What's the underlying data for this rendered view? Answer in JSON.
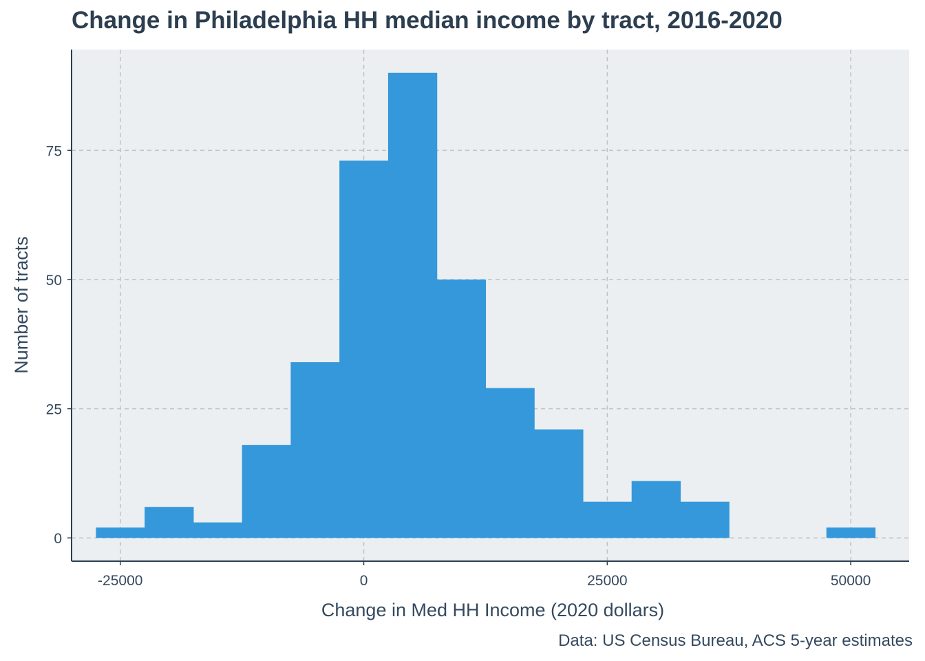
{
  "chart_data": {
    "type": "bar",
    "title": "Change in Philadelphia HH median income by tract, 2016-2020",
    "xlabel": "Change in Med HH Income (2020 dollars)",
    "ylabel": "Number of tracts",
    "caption": "Data: US Census Bureau, ACS 5-year estimates",
    "bin_width": 5000,
    "bins": [
      {
        "x0": -27500,
        "x1": -22500,
        "count": 2
      },
      {
        "x0": -22500,
        "x1": -17500,
        "count": 6
      },
      {
        "x0": -17500,
        "x1": -12500,
        "count": 3
      },
      {
        "x0": -12500,
        "x1": -7500,
        "count": 18
      },
      {
        "x0": -7500,
        "x1": -2500,
        "count": 34
      },
      {
        "x0": -2500,
        "x1": 2500,
        "count": 73
      },
      {
        "x0": 2500,
        "x1": 7500,
        "count": 90
      },
      {
        "x0": 7500,
        "x1": 12500,
        "count": 50
      },
      {
        "x0": 12500,
        "x1": 17500,
        "count": 29
      },
      {
        "x0": 17500,
        "x1": 22500,
        "count": 21
      },
      {
        "x0": 22500,
        "x1": 27500,
        "count": 7
      },
      {
        "x0": 27500,
        "x1": 32500,
        "count": 11
      },
      {
        "x0": 32500,
        "x1": 37500,
        "count": 7
      },
      {
        "x0": 37500,
        "x1": 42500,
        "count": 0
      },
      {
        "x0": 42500,
        "x1": 47500,
        "count": 0
      },
      {
        "x0": 47500,
        "x1": 52500,
        "count": 2
      }
    ],
    "x_ticks": [
      -25000,
      0,
      25000,
      50000
    ],
    "x_tick_labels": [
      "-25000",
      "0",
      "25000",
      "50000"
    ],
    "y_ticks": [
      0,
      25,
      50,
      75
    ],
    "y_tick_labels": [
      "0",
      "25",
      "50",
      "75"
    ],
    "xlim": [
      -30000,
      56000
    ],
    "ylim": [
      -4.5,
      94.5
    ],
    "grid": true,
    "colors": {
      "bar": "#3498db",
      "panel": "#ebeff1",
      "grid": "#bdc3c7",
      "axis": "#2c3e50",
      "text": "#34495e"
    }
  }
}
